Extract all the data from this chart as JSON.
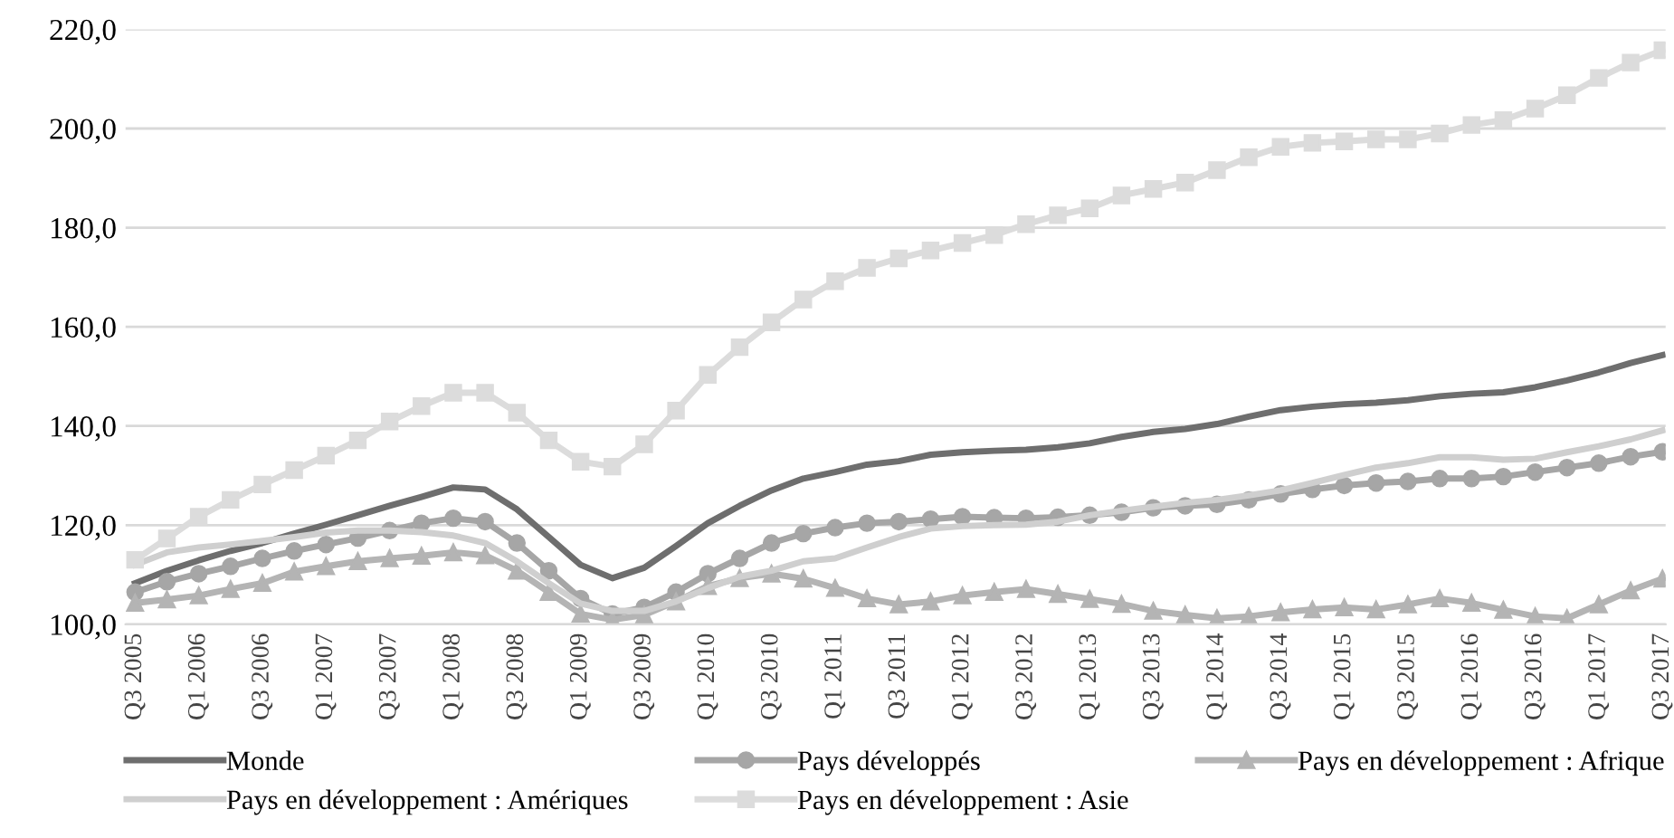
{
  "chart_data": {
    "type": "line",
    "categories": [
      "Q3 2005",
      null,
      "Q1 2006",
      null,
      "Q3 2006",
      null,
      "Q1 2007",
      null,
      "Q3 2007",
      null,
      "Q1 2008",
      null,
      "Q3 2008",
      null,
      "Q1 2009",
      null,
      "Q3 2009",
      null,
      "Q1 2010",
      null,
      "Q3 2010",
      null,
      "Q1 2011",
      null,
      "Q3 2011",
      null,
      "Q1 2012",
      null,
      "Q3 2012",
      null,
      "Q1 2013",
      null,
      "Q3 2013",
      null,
      "Q1 2014",
      null,
      "Q3 2014",
      null,
      "Q1 2015",
      null,
      "Q3 2015",
      null,
      "Q1 2016",
      null,
      "Q3 2016",
      null,
      "Q1 2017",
      null,
      "Q3 2017"
    ],
    "ylim": [
      100,
      220
    ],
    "yticks": [
      {
        "value": 100,
        "label": "100,0"
      },
      {
        "value": 120,
        "label": "120,0"
      },
      {
        "value": 140,
        "label": "140,0"
      },
      {
        "value": 160,
        "label": "160,0"
      },
      {
        "value": 180,
        "label": "180,0"
      },
      {
        "value": 200,
        "label": "200,0"
      },
      {
        "value": 220,
        "label": "220,0"
      }
    ],
    "grid": "y",
    "legend": "bottom",
    "series": [
      {
        "name": "Monde",
        "color": "#6e6e6e",
        "marker": "none",
        "values": [
          108.3,
          110.8,
          112.9,
          114.8,
          116.4,
          118.3,
          120.1,
          122.0,
          123.9,
          125.7,
          127.6,
          127.2,
          123.2,
          117.6,
          112.0,
          109.3,
          111.4,
          115.8,
          120.4,
          123.9,
          127.0,
          129.4,
          130.7,
          132.2,
          132.9,
          134.2,
          134.7,
          135.0,
          135.2,
          135.7,
          136.5,
          137.8,
          138.8,
          139.4,
          140.4,
          141.9,
          143.2,
          143.9,
          144.4,
          144.7,
          145.2,
          146.0,
          146.5,
          146.8,
          147.8,
          149.2,
          150.8,
          152.7,
          154.3
        ]
      },
      {
        "name": "Pays développés",
        "color": "#a6a6a6",
        "marker": "circle",
        "values": [
          106.5,
          108.6,
          110.2,
          111.7,
          113.3,
          114.8,
          116.1,
          117.4,
          118.9,
          120.4,
          121.4,
          120.7,
          116.4,
          110.8,
          105.2,
          102.1,
          103.4,
          106.5,
          110.2,
          113.3,
          116.4,
          118.3,
          119.5,
          120.4,
          120.7,
          121.2,
          121.7,
          121.5,
          121.4,
          121.6,
          122.0,
          122.6,
          123.5,
          123.9,
          124.2,
          125.1,
          126.3,
          127.2,
          128.0,
          128.5,
          128.8,
          129.4,
          129.4,
          129.8,
          130.7,
          131.6,
          132.5,
          133.8,
          134.8
        ]
      },
      {
        "name": "Pays en développement : Afrique",
        "color": "#b4b4b4",
        "marker": "triangle",
        "values": [
          104.3,
          105.0,
          105.8,
          107.1,
          108.3,
          110.6,
          111.7,
          112.7,
          113.3,
          113.8,
          114.5,
          113.9,
          110.8,
          106.5,
          102.1,
          100.9,
          101.9,
          104.6,
          107.7,
          109.3,
          110.2,
          109.2,
          107.3,
          105.2,
          104.0,
          104.6,
          105.8,
          106.5,
          107.1,
          106.1,
          105.1,
          104.1,
          102.7,
          101.9,
          101.2,
          101.6,
          102.4,
          103.0,
          103.4,
          103.0,
          104.0,
          105.2,
          104.3,
          102.9,
          101.6,
          101.2,
          104.0,
          106.8,
          109.2
        ]
      },
      {
        "name": "Pays en développement : Amériques",
        "color": "#cfcfcf",
        "marker": "none",
        "values": [
          112.0,
          114.5,
          115.5,
          116.1,
          116.8,
          117.6,
          118.5,
          118.9,
          118.9,
          118.6,
          117.9,
          116.4,
          112.7,
          108.3,
          104.2,
          102.7,
          102.7,
          104.6,
          107.3,
          109.6,
          110.8,
          112.7,
          113.3,
          115.5,
          117.6,
          119.3,
          119.8,
          120.0,
          120.1,
          120.7,
          122.0,
          122.9,
          123.7,
          124.5,
          125.1,
          126.0,
          127.0,
          128.5,
          130.1,
          131.6,
          132.5,
          133.7,
          133.7,
          133.2,
          133.4,
          134.7,
          135.9,
          137.3,
          139.1
        ]
      },
      {
        "name": "Pays en développement : Asie",
        "color": "#dcdcdc",
        "marker": "square",
        "values": [
          113.0,
          117.3,
          121.7,
          125.1,
          128.2,
          131.1,
          134.0,
          137.1,
          140.9,
          144.0,
          146.7,
          146.7,
          142.7,
          137.1,
          132.8,
          131.8,
          136.3,
          143.1,
          150.3,
          155.9,
          160.9,
          165.5,
          169.2,
          171.9,
          173.8,
          175.4,
          176.9,
          178.5,
          180.7,
          182.5,
          183.9,
          186.5,
          187.8,
          189.1,
          191.6,
          194.2,
          196.3,
          197.1,
          197.4,
          197.8,
          197.8,
          199.0,
          200.7,
          201.7,
          204.0,
          206.7,
          210.2,
          213.3,
          215.8
        ]
      }
    ]
  }
}
